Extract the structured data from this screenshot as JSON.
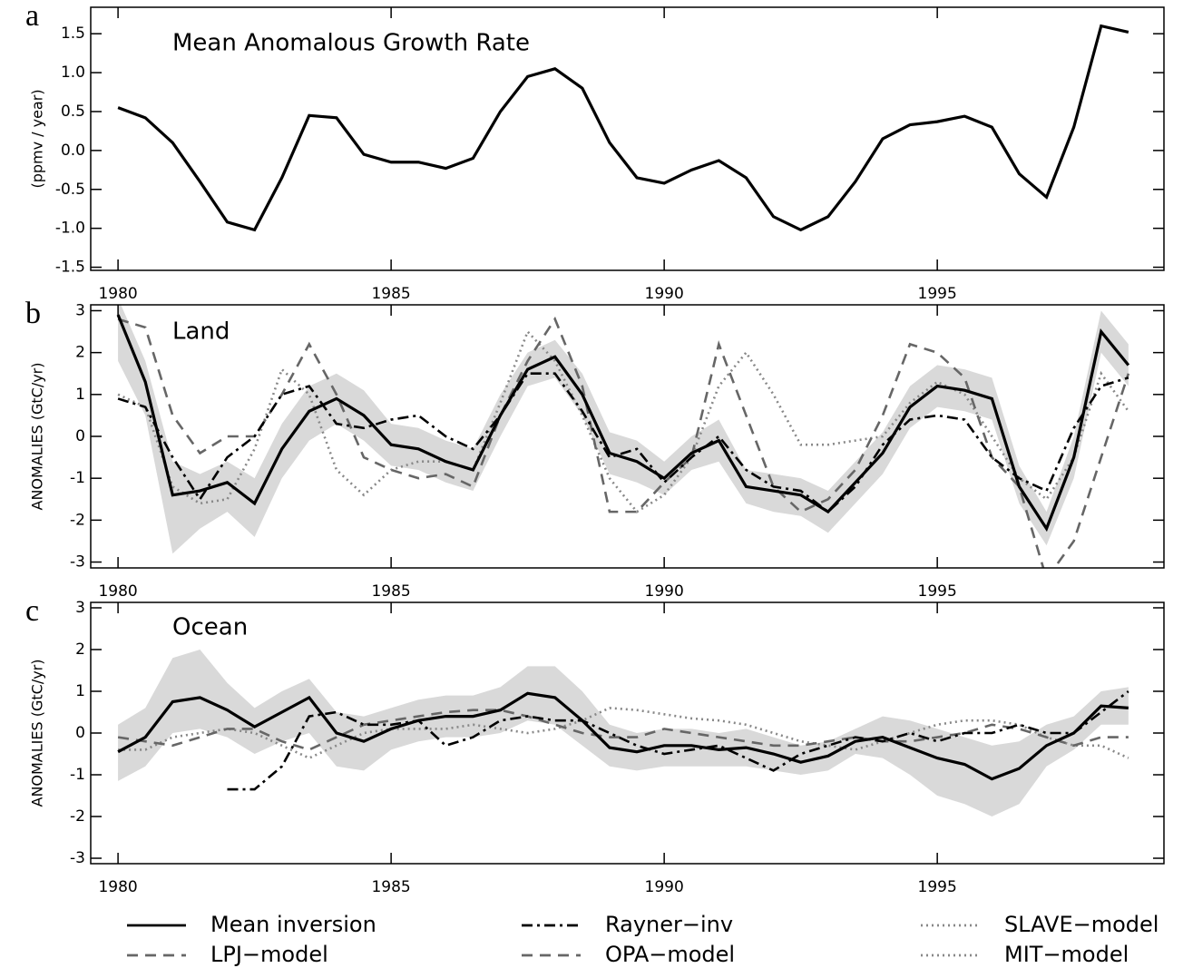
{
  "chart_data": [
    {
      "type": "line",
      "panel_label": "a",
      "title": "Mean Anomalous Growth Rate",
      "ylabel": "(ppmv / year)",
      "x": [
        1980,
        1980.5,
        1981,
        1981.5,
        1982,
        1982.5,
        1983,
        1983.5,
        1984,
        1984.5,
        1985,
        1985.5,
        1986,
        1986.5,
        1987,
        1987.5,
        1988,
        1988.5,
        1989,
        1989.5,
        1990,
        1990.5,
        1991,
        1991.5,
        1992,
        1992.5,
        1993,
        1993.5,
        1994,
        1994.5,
        1995,
        1995.5,
        1996,
        1996.5,
        1997,
        1997.5,
        1998,
        1998.5
      ],
      "series": [
        {
          "color": "#000000",
          "dash": "solid",
          "values": [
            0.55,
            0.42,
            0.1,
            -0.4,
            -0.92,
            -1.02,
            -0.35,
            0.45,
            0.42,
            -0.05,
            -0.15,
            -0.15,
            -0.23,
            -0.1,
            0.5,
            0.95,
            1.05,
            0.8,
            0.1,
            -0.35,
            -0.42,
            -0.25,
            -0.13,
            -0.35,
            -0.85,
            -1.02,
            -0.85,
            -0.4,
            0.15,
            0.33,
            0.37,
            0.44,
            0.3,
            -0.3,
            -0.6,
            0.3,
            1.6,
            1.52
          ]
        }
      ],
      "xlim": [
        1979.5,
        1999.15
      ],
      "xticks": [
        1980,
        1985,
        1990,
        1995
      ],
      "ylim": [
        -1.54,
        1.84
      ],
      "yticks": [
        1.5,
        {
          "value": 1,
          "label": "1.0"
        },
        0.5,
        {
          "value": 0,
          "label": "0.0"
        },
        -0.5,
        {
          "value": -1,
          "label": "-1.0"
        },
        -1.5
      ]
    },
    {
      "type": "line",
      "panel_label": "b",
      "title": "Land",
      "ylabel": "ANOMALIES (GtC/yr)",
      "x": [
        1980,
        1980.5,
        1981,
        1981.5,
        1982,
        1982.5,
        1983,
        1983.5,
        1984,
        1984.5,
        1985,
        1985.5,
        1986,
        1986.5,
        1987,
        1987.5,
        1988,
        1988.5,
        1989,
        1989.5,
        1990,
        1990.5,
        1991,
        1991.5,
        1992,
        1992.5,
        1993,
        1993.5,
        1994,
        1994.5,
        1995,
        1995.5,
        1996,
        1996.5,
        1997,
        1997.5,
        1998,
        1998.5
      ],
      "series": [
        {
          "name": "Mean inversion",
          "color": "#000000",
          "dash": "solid",
          "band_color": "#d9d9d9",
          "values": [
            2.9,
            1.3,
            -1.4,
            -1.3,
            -1.1,
            -1.6,
            -0.3,
            0.6,
            0.9,
            0.5,
            -0.2,
            -0.3,
            -0.6,
            -0.8,
            0.5,
            1.6,
            1.9,
            1.0,
            -0.4,
            -0.6,
            -1.0,
            -0.4,
            -0.1,
            -1.2,
            -1.3,
            -1.4,
            -1.8,
            -1.1,
            -0.4,
            0.7,
            1.2,
            1.1,
            0.9,
            -1.2,
            -2.2,
            -0.5,
            2.5,
            1.7
          ],
          "lower": [
            1.8,
            0.5,
            -2.8,
            -2.2,
            -1.8,
            -2.4,
            -1.0,
            -0.1,
            0.3,
            -0.1,
            -0.7,
            -0.8,
            -1.1,
            -1.3,
            0.0,
            1.2,
            1.4,
            0.5,
            -0.9,
            -1.1,
            -1.4,
            -0.8,
            -0.6,
            -1.6,
            -1.8,
            -1.9,
            -2.3,
            -1.6,
            -0.9,
            0.2,
            0.7,
            0.6,
            0.4,
            -1.6,
            -2.6,
            -1.0,
            2.0,
            1.2
          ],
          "upper": [
            3.3,
            1.8,
            -0.6,
            -0.9,
            -0.6,
            -1.0,
            0.3,
            1.2,
            1.5,
            1.1,
            0.3,
            0.2,
            -0.1,
            -0.3,
            1.0,
            2.0,
            2.3,
            1.5,
            0.1,
            -0.1,
            -0.6,
            0.0,
            0.4,
            -0.8,
            -0.9,
            -1.0,
            -1.3,
            -0.6,
            0.1,
            1.2,
            1.7,
            1.6,
            1.4,
            -0.7,
            -1.8,
            0.0,
            3.0,
            2.2
          ]
        },
        {
          "name": "Rayner−inv",
          "color": "#000000",
          "dash": "dashdot",
          "values": [
            0.9,
            0.7,
            -0.5,
            -1.5,
            -0.5,
            0.0,
            1.0,
            1.2,
            0.3,
            0.2,
            0.4,
            0.5,
            0.0,
            -0.3,
            0.5,
            1.5,
            1.5,
            0.6,
            -0.5,
            -0.3,
            -1.1,
            -0.5,
            0.0,
            -0.8,
            -1.2,
            -1.3,
            -1.8,
            -1.2,
            -0.2,
            0.4,
            0.5,
            0.4,
            -0.5,
            -1.0,
            -1.3,
            0.2,
            1.2,
            1.4
          ]
        },
        {
          "name": "LPJ−model",
          "color": "#666666",
          "dash": "dash",
          "values": [
            2.8,
            2.6,
            0.5,
            -0.4,
            0.0,
            0.0,
            1.0,
            2.2,
            1.0,
            -0.5,
            -0.8,
            -1.0,
            -0.9,
            -1.2,
            0.5,
            1.8,
            2.8,
            1.2,
            -1.8,
            -1.8,
            -1.1,
            -0.5,
            2.2,
            0.5,
            -1.2,
            -1.8,
            -1.5,
            -0.8,
            0.5,
            2.2,
            2.0,
            1.4,
            -0.5,
            -1.2,
            -3.4,
            -2.5,
            -0.5,
            1.5
          ]
        },
        {
          "name": "SLAVE−model",
          "color": "#888888",
          "dash": "dot",
          "values": [
            1.0,
            0.7,
            -1.2,
            -1.6,
            -1.5,
            -0.3,
            1.6,
            1.0,
            -0.8,
            -1.4,
            -0.8,
            -0.6,
            -0.6,
            -0.8,
            0.8,
            2.5,
            1.8,
            0.5,
            -1.0,
            -1.8,
            -1.4,
            -0.5,
            1.2,
            2.0,
            1.0,
            -0.2,
            -0.2,
            -0.1,
            0.0,
            0.8,
            1.3,
            1.0,
            0.0,
            -1.0,
            -1.5,
            -0.5,
            1.5,
            0.6
          ]
        }
      ],
      "xlim": [
        1979.5,
        1999.15
      ],
      "xticks": [
        1980,
        1985,
        1990,
        1995
      ],
      "ylim": [
        -3.14,
        3.14
      ],
      "yticks": [
        3,
        2,
        1,
        0,
        -1,
        -2,
        -3
      ]
    },
    {
      "type": "line",
      "panel_label": "c",
      "title": "Ocean",
      "ylabel": "ANOMALIES (GtC/yr)",
      "x": [
        1980,
        1980.5,
        1981,
        1981.5,
        1982,
        1982.5,
        1983,
        1983.5,
        1984,
        1984.5,
        1985,
        1985.5,
        1986,
        1986.5,
        1987,
        1987.5,
        1988,
        1988.5,
        1989,
        1989.5,
        1990,
        1990.5,
        1991,
        1991.5,
        1992,
        1992.5,
        1993,
        1993.5,
        1994,
        1994.5,
        1995,
        1995.5,
        1996,
        1996.5,
        1997,
        1997.5,
        1998,
        1998.5
      ],
      "series": [
        {
          "color": "#000000",
          "dash": "solid",
          "band_color": "#d9d9d9",
          "values": [
            -0.45,
            -0.1,
            0.75,
            0.85,
            0.55,
            0.15,
            0.5,
            0.85,
            0.0,
            -0.2,
            0.1,
            0.3,
            0.4,
            0.4,
            0.55,
            0.95,
            0.85,
            0.3,
            -0.35,
            -0.45,
            -0.3,
            -0.3,
            -0.4,
            -0.35,
            -0.5,
            -0.7,
            -0.55,
            -0.2,
            -0.1,
            -0.35,
            -0.6,
            -0.75,
            -1.1,
            -0.85,
            -0.3,
            0.0,
            0.65,
            0.6
          ],
          "lower": [
            -1.15,
            -0.8,
            0.0,
            0.1,
            -0.1,
            -0.5,
            -0.2,
            0.0,
            -0.8,
            -0.9,
            -0.4,
            -0.2,
            -0.1,
            -0.1,
            0.0,
            0.3,
            0.2,
            -0.3,
            -0.8,
            -0.9,
            -0.8,
            -0.8,
            -0.8,
            -0.8,
            -0.9,
            -1.0,
            -0.9,
            -0.5,
            -0.6,
            -1.0,
            -1.5,
            -1.7,
            -2.0,
            -1.7,
            -0.8,
            -0.4,
            0.2,
            0.2
          ],
          "upper": [
            0.2,
            0.6,
            1.8,
            2.0,
            1.2,
            0.6,
            1.0,
            1.3,
            0.5,
            0.4,
            0.6,
            0.8,
            0.9,
            0.9,
            1.1,
            1.6,
            1.6,
            1.0,
            0.2,
            0.0,
            0.1,
            0.1,
            0.0,
            0.1,
            -0.1,
            -0.3,
            -0.2,
            0.1,
            0.4,
            0.3,
            0.1,
            -0.1,
            -0.3,
            -0.2,
            0.2,
            0.4,
            1.0,
            1.1
          ]
        },
        {
          "color": "#000000",
          "dash": "dashdot",
          "values": [
            null,
            null,
            null,
            null,
            -1.35,
            -1.35,
            -0.8,
            0.4,
            0.5,
            0.2,
            0.2,
            0.3,
            -0.3,
            -0.1,
            0.3,
            0.4,
            0.3,
            0.3,
            0.0,
            -0.3,
            -0.5,
            -0.4,
            -0.3,
            -0.6,
            -0.9,
            -0.5,
            -0.3,
            -0.1,
            -0.2,
            0.0,
            -0.2,
            0.0,
            0.0,
            0.2,
            0.0,
            0.0,
            0.5,
            1.0
          ]
        },
        {
          "name": "OPA−model",
          "color": "#666666",
          "dash": "dash",
          "values": [
            -0.1,
            -0.2,
            -0.3,
            -0.1,
            0.1,
            0.1,
            -0.2,
            -0.4,
            -0.1,
            0.2,
            0.3,
            0.4,
            0.5,
            0.55,
            0.55,
            0.4,
            0.2,
            0.0,
            -0.1,
            -0.1,
            0.1,
            0.0,
            -0.1,
            -0.2,
            -0.3,
            -0.3,
            -0.2,
            -0.1,
            -0.2,
            -0.2,
            -0.1,
            0.0,
            0.2,
            0.1,
            -0.1,
            -0.3,
            -0.1,
            -0.1
          ]
        },
        {
          "name": "MIT−model",
          "color": "#888888",
          "dash": "dot",
          "values": [
            -0.4,
            -0.4,
            -0.1,
            0.0,
            0.1,
            0.0,
            -0.3,
            -0.6,
            -0.3,
            0.0,
            0.1,
            0.1,
            0.1,
            0.2,
            0.1,
            0.0,
            0.1,
            0.3,
            0.6,
            0.55,
            0.45,
            0.35,
            0.3,
            0.2,
            0.0,
            -0.2,
            -0.3,
            -0.4,
            -0.2,
            0.0,
            0.2,
            0.3,
            0.3,
            0.2,
            -0.1,
            -0.3,
            -0.3,
            -0.6
          ]
        }
      ],
      "xlim": [
        1979.5,
        1999.15
      ],
      "xticks": [
        1980,
        1985,
        1990,
        1995
      ],
      "ylim": [
        -3.13,
        3.13
      ],
      "yticks": [
        3,
        2,
        1,
        0,
        -1,
        -2,
        -3
      ]
    }
  ]
}
